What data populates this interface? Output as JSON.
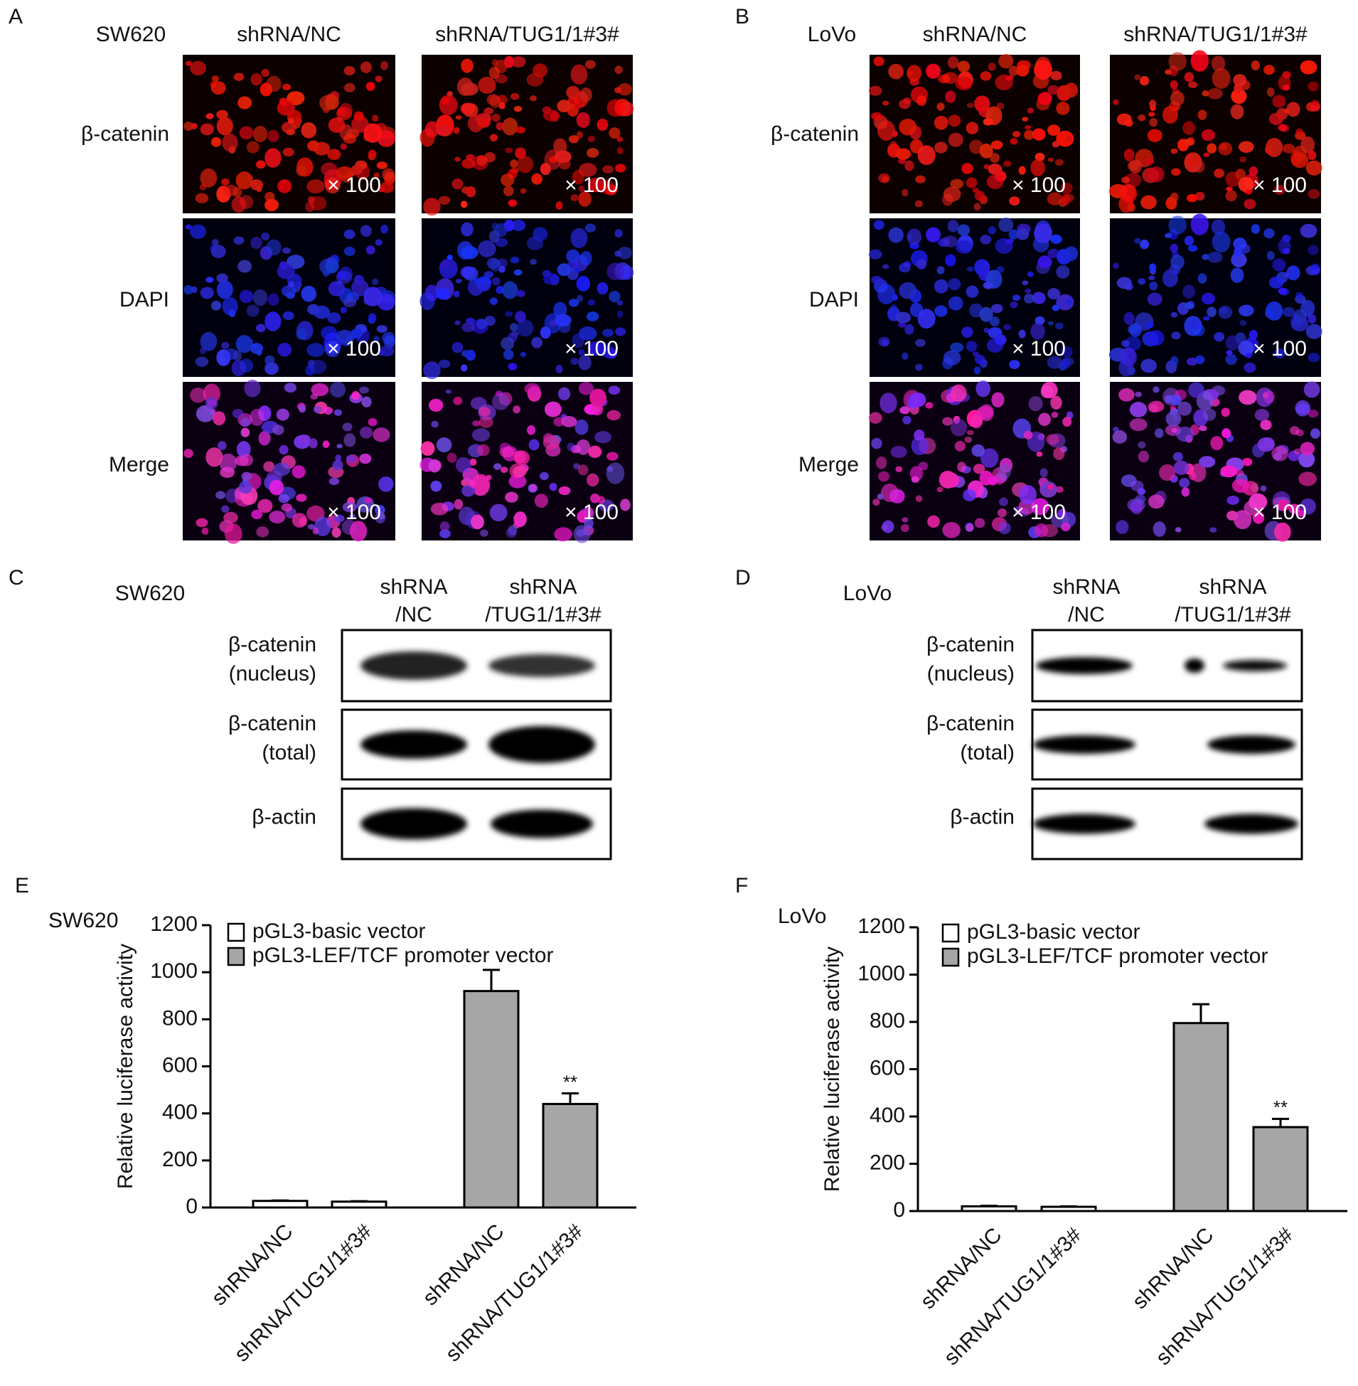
{
  "panels": {
    "A": {
      "label": "A",
      "cell_line": "SW620",
      "columns": [
        "shRNA/NC",
        "shRNA/TUG1/1#3#"
      ],
      "rows": [
        "β-catenin",
        "DAPI",
        "Merge"
      ],
      "magnification": "× 100"
    },
    "B": {
      "label": "B",
      "cell_line": "LoVo",
      "columns": [
        "shRNA/NC",
        "shRNA/TUG1/1#3#"
      ],
      "rows": [
        "β-catenin",
        "DAPI",
        "Merge"
      ],
      "magnification": "× 100"
    },
    "C": {
      "label": "C",
      "cell_line": "SW620",
      "columns": [
        [
          "shRNA",
          "/NC"
        ],
        [
          "shRNA",
          "/TUG1/1#3#"
        ]
      ],
      "rows": [
        [
          "β-catenin",
          "(nucleus)"
        ],
        [
          "β-catenin",
          "(total)"
        ],
        [
          "β-actin"
        ]
      ]
    },
    "D": {
      "label": "D",
      "cell_line": "LoVo",
      "columns": [
        [
          "shRNA",
          "/NC"
        ],
        [
          "shRNA",
          "/TUG1/1#3#"
        ]
      ],
      "rows": [
        [
          "β-catenin",
          "(nucleus)"
        ],
        [
          "β-catenin",
          "(total)"
        ],
        [
          "β-actin"
        ]
      ]
    }
  },
  "chart_data": [
    {
      "type": "bar",
      "panel_label": "E",
      "cell_line": "SW620",
      "ylabel": "Relative luciferase activity",
      "categories": [
        "shRNA/NC",
        "shRNA/TUG1/1#3#",
        "shRNA/NC",
        "shRNA/TUG1/1#3#"
      ],
      "series": [
        {
          "name": "pGL3-basic vector",
          "color": "#ffffff",
          "values": [
            28,
            25,
            null,
            null
          ],
          "errors": [
            2,
            2,
            null,
            null
          ]
        },
        {
          "name": "pGL3-LEF/TCF promoter vector",
          "color": "#a6a6a6",
          "values": [
            null,
            null,
            920,
            440
          ],
          "errors": [
            null,
            null,
            90,
            45
          ]
        }
      ],
      "ylim": [
        0,
        1200
      ],
      "yticks": [
        0,
        200,
        400,
        600,
        800,
        1000,
        1200
      ],
      "annotation": "**"
    },
    {
      "type": "bar",
      "panel_label": "F",
      "cell_line": "LoVo",
      "ylabel": "Relative luciferase activity",
      "categories": [
        "shRNA/NC",
        "shRNA/TUG1/1#3#",
        "shRNA/NC",
        "shRNA/TUG1/1#3#"
      ],
      "series": [
        {
          "name": "pGL3-basic vector",
          "color": "#ffffff",
          "values": [
            20,
            18,
            null,
            null
          ],
          "errors": [
            2,
            2,
            null,
            null
          ]
        },
        {
          "name": "pGL3-LEF/TCF promoter vector",
          "color": "#a6a6a6",
          "values": [
            null,
            null,
            795,
            355
          ],
          "errors": [
            null,
            null,
            80,
            35
          ]
        }
      ],
      "ylim": [
        0,
        1200
      ],
      "yticks": [
        0,
        200,
        400,
        600,
        800,
        1000,
        1200
      ],
      "annotation": "**"
    }
  ]
}
